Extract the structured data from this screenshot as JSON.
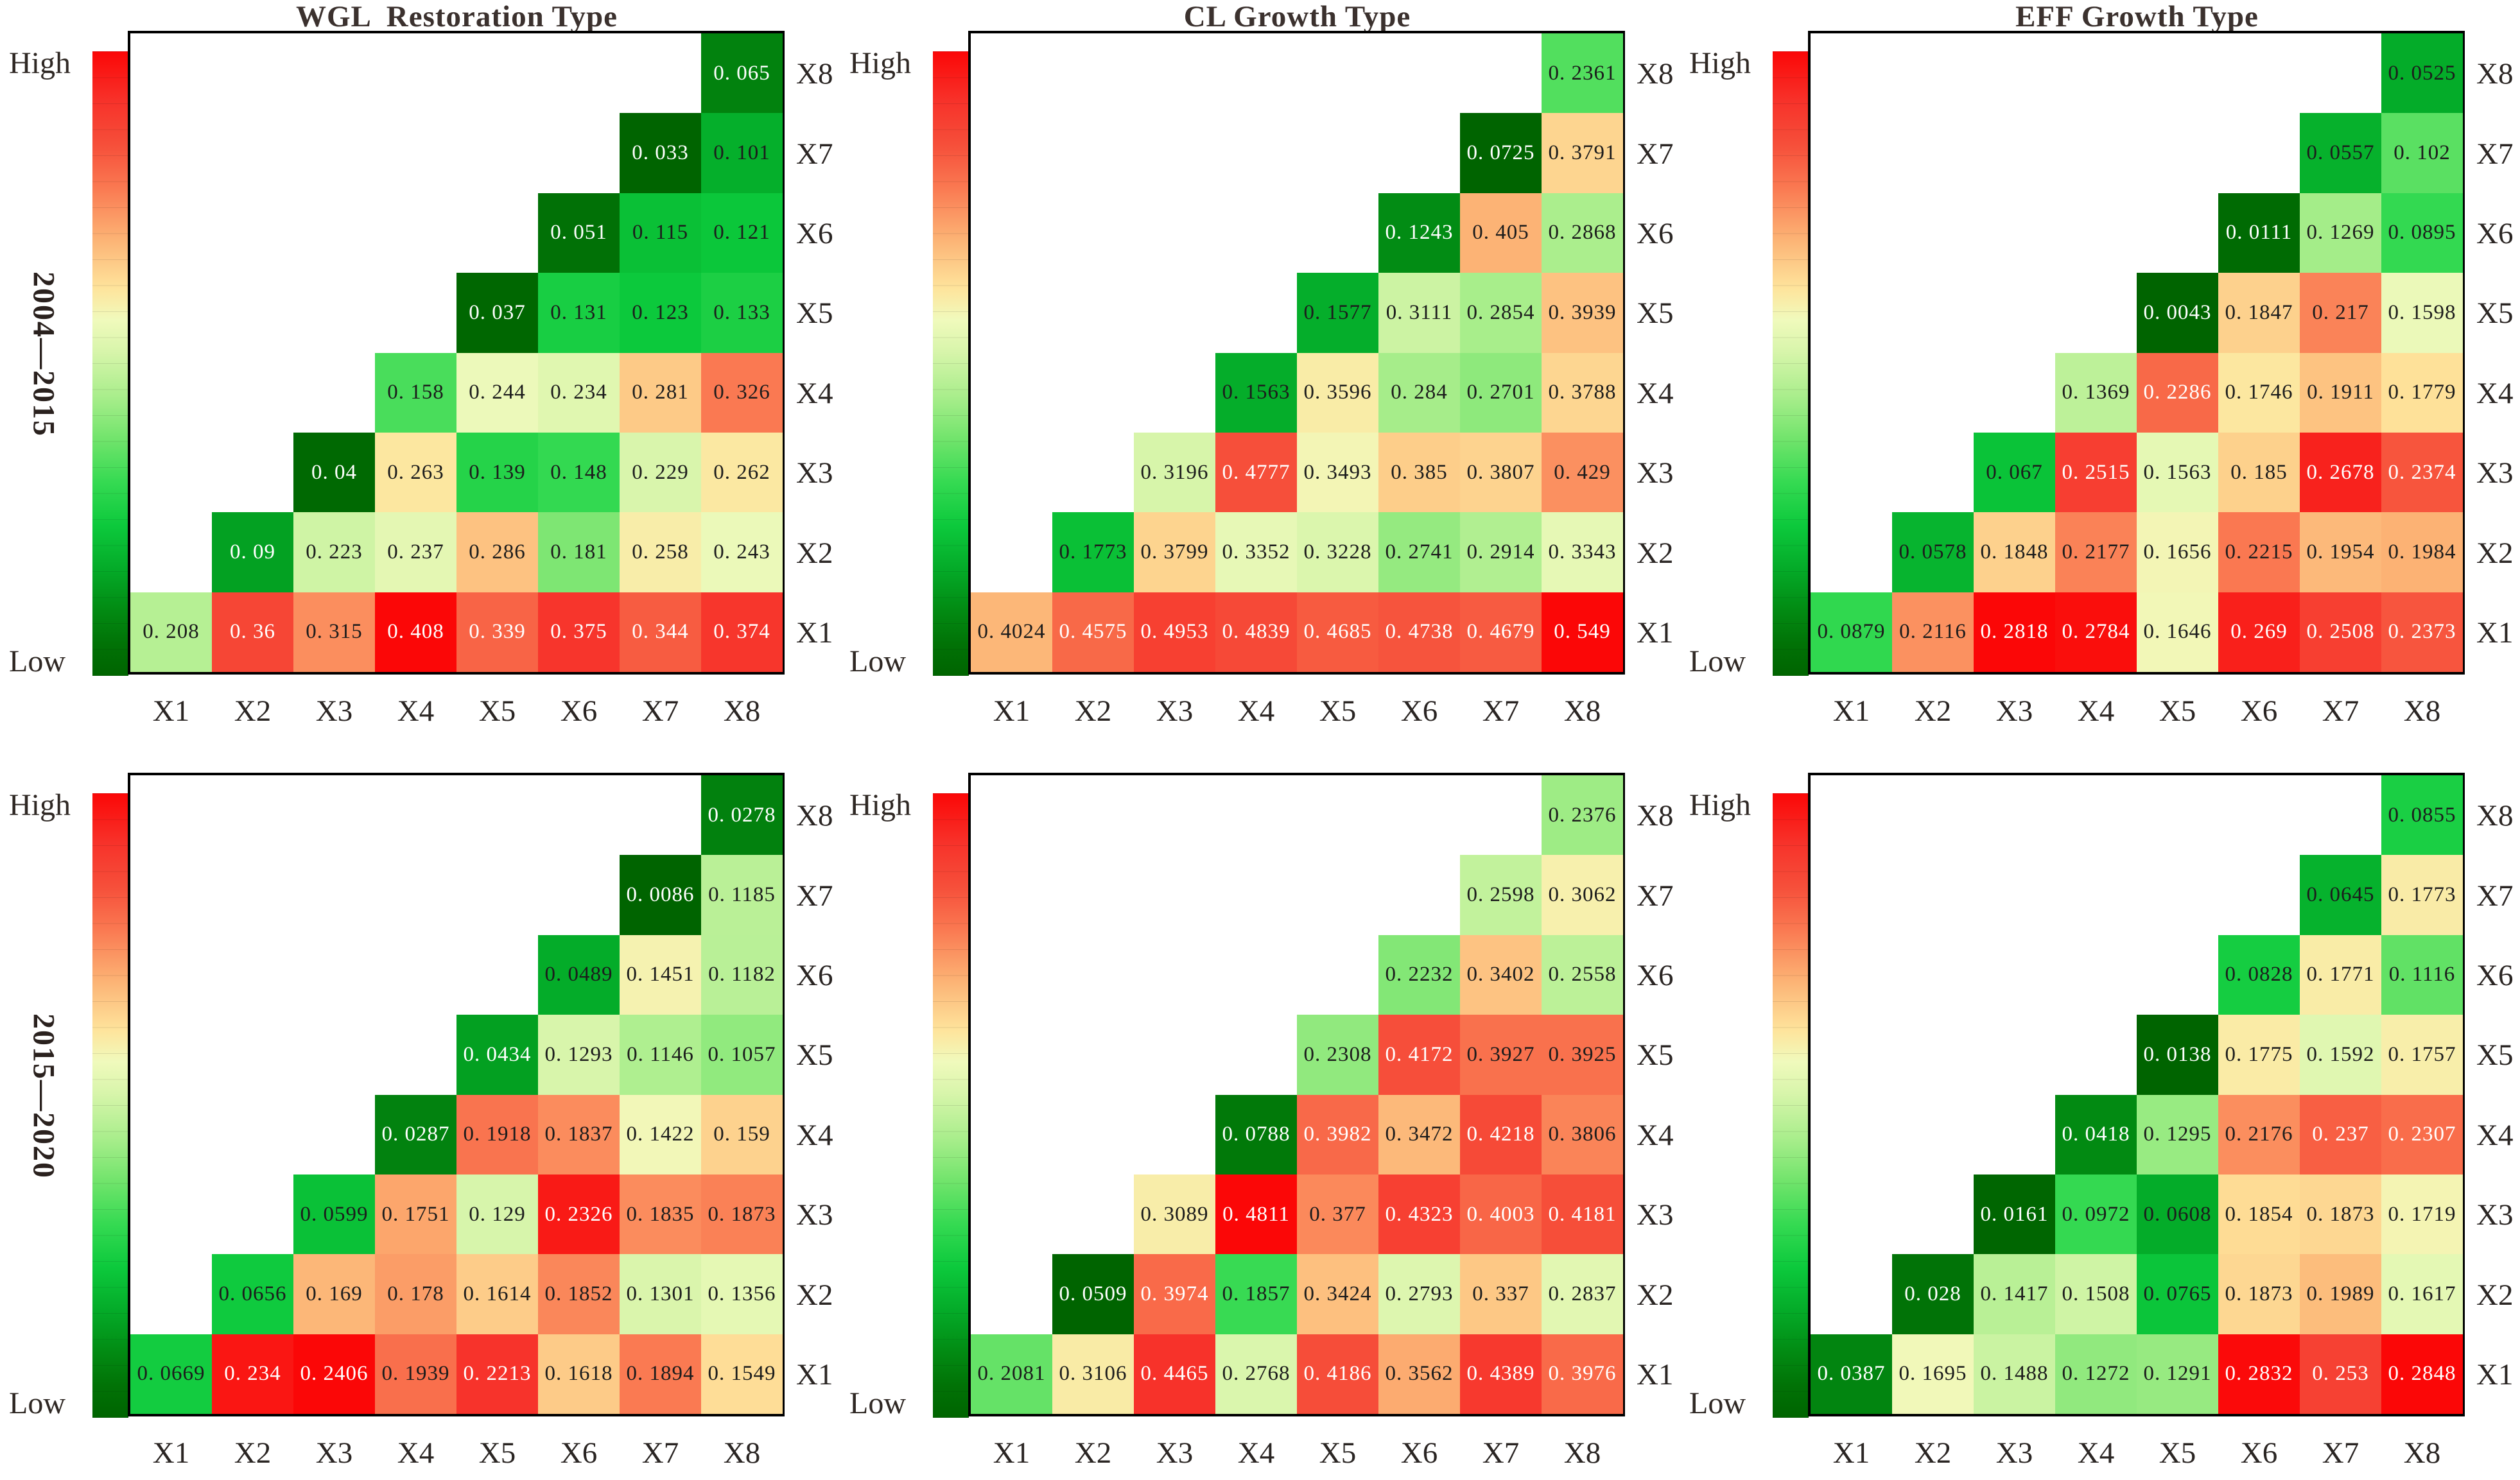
{
  "figure": {
    "background_color": "#ffffff",
    "column_titles": [
      "WGL  Restoration Type",
      "CL Growth Type",
      "EFF Growth Type"
    ],
    "row_period_labels": [
      "2004—2015",
      "2015—2020"
    ],
    "colorbar": {
      "high_label": "High",
      "low_label": "Low",
      "high_color": "#fb0606",
      "mid_color": "#fbfcbf",
      "low_color": "#006400"
    },
    "x_axis_labels": [
      "X1",
      "X2",
      "X3",
      "X4",
      "X5",
      "X6",
      "X7",
      "X8"
    ],
    "y_axis_labels_top_to_bottom": [
      "X8",
      "X7",
      "X6",
      "X5",
      "X4",
      "X3",
      "X2",
      "X1"
    ]
  },
  "palette": {
    "anchors": [
      [
        0.0,
        "#006400"
      ],
      [
        0.05,
        "#017206"
      ],
      [
        0.11,
        "#028d14"
      ],
      [
        0.17,
        "#04aa28"
      ],
      [
        0.24,
        "#0cc93c"
      ],
      [
        0.31,
        "#35da52"
      ],
      [
        0.38,
        "#72e46c"
      ],
      [
        0.45,
        "#abee8d"
      ],
      [
        0.52,
        "#d8f5ab"
      ],
      [
        0.57,
        "#f0fabc"
      ],
      [
        0.62,
        "#fee49c"
      ],
      [
        0.7,
        "#fcb274"
      ],
      [
        0.78,
        "#fa7a52"
      ],
      [
        0.85,
        "#f64f3a"
      ],
      [
        0.92,
        "#f7322a"
      ],
      [
        1.0,
        "#fb0707"
      ]
    ],
    "white_text_low_t": 0.16,
    "white_text_high_t": 0.8
  },
  "chart_data": [
    {
      "type": "heatmap",
      "title": "WGL  Restoration Type",
      "period": "2004—2015",
      "grid_row": 0,
      "grid_col": 0,
      "x_labels": [
        "X1",
        "X2",
        "X3",
        "X4",
        "X5",
        "X6",
        "X7",
        "X8"
      ],
      "rows": [
        {
          "y": "X8",
          "values": [
            0.065
          ]
        },
        {
          "y": "X7",
          "values": [
            0.033,
            0.101
          ]
        },
        {
          "y": "X6",
          "values": [
            0.051,
            0.115,
            0.121
          ]
        },
        {
          "y": "X5",
          "values": [
            0.037,
            0.131,
            0.123,
            0.133
          ]
        },
        {
          "y": "X4",
          "values": [
            0.158,
            0.244,
            0.234,
            0.281,
            0.326
          ]
        },
        {
          "y": "X3",
          "values": [
            0.04,
            0.263,
            0.139,
            0.148,
            0.229,
            0.262
          ]
        },
        {
          "y": "X2",
          "values": [
            0.09,
            0.223,
            0.237,
            0.286,
            0.181,
            0.258,
            0.243
          ]
        },
        {
          "y": "X1",
          "values": [
            0.208,
            0.36,
            0.315,
            0.408,
            0.339,
            0.375,
            0.344,
            0.374
          ]
        }
      ]
    },
    {
      "type": "heatmap",
      "title": "CL Growth Type",
      "period": "2004—2015",
      "grid_row": 0,
      "grid_col": 1,
      "x_labels": [
        "X1",
        "X2",
        "X3",
        "X4",
        "X5",
        "X6",
        "X7",
        "X8"
      ],
      "rows": [
        {
          "y": "X8",
          "values": [
            0.2361
          ]
        },
        {
          "y": "X7",
          "values": [
            0.0725,
            0.3791
          ]
        },
        {
          "y": "X6",
          "values": [
            0.1243,
            0.405,
            0.2868
          ]
        },
        {
          "y": "X5",
          "values": [
            0.1577,
            0.3111,
            0.2854,
            0.3939
          ]
        },
        {
          "y": "X4",
          "values": [
            0.1563,
            0.3596,
            0.284,
            0.2701,
            0.3788
          ]
        },
        {
          "y": "X3",
          "values": [
            0.3196,
            0.4777,
            0.3493,
            0.385,
            0.3807,
            0.429
          ]
        },
        {
          "y": "X2",
          "values": [
            0.1773,
            0.3799,
            0.3352,
            0.3228,
            0.2741,
            0.2914,
            0.3343
          ]
        },
        {
          "y": "X1",
          "values": [
            0.4024,
            0.4575,
            0.4953,
            0.4839,
            0.4685,
            0.4738,
            0.4679,
            0.549
          ]
        }
      ]
    },
    {
      "type": "heatmap",
      "title": "EFF Growth Type",
      "period": "2004—2015",
      "grid_row": 0,
      "grid_col": 2,
      "x_labels": [
        "X1",
        "X2",
        "X3",
        "X4",
        "X5",
        "X6",
        "X7",
        "X8"
      ],
      "rows": [
        {
          "y": "X8",
          "values": [
            0.0525
          ]
        },
        {
          "y": "X7",
          "values": [
            0.0557,
            0.102
          ]
        },
        {
          "y": "X6",
          "values": [
            0.0111,
            0.1269,
            0.0895
          ]
        },
        {
          "y": "X5",
          "values": [
            0.0043,
            0.1847,
            0.217,
            0.1598
          ]
        },
        {
          "y": "X4",
          "values": [
            0.1369,
            0.2286,
            0.1746,
            0.1911,
            0.1779
          ]
        },
        {
          "y": "X3",
          "values": [
            0.067,
            0.2515,
            0.1563,
            0.185,
            0.2678,
            0.2374
          ]
        },
        {
          "y": "X2",
          "values": [
            0.0578,
            0.1848,
            0.2177,
            0.1656,
            0.2215,
            0.1954,
            0.1984
          ]
        },
        {
          "y": "X1",
          "values": [
            0.0879,
            0.2116,
            0.2818,
            0.2784,
            0.1646,
            0.269,
            0.2508,
            0.2373
          ]
        }
      ]
    },
    {
      "type": "heatmap",
      "title": null,
      "period": "2015—2020",
      "grid_row": 1,
      "grid_col": 0,
      "x_labels": [
        "X1",
        "X2",
        "X3",
        "X4",
        "X5",
        "X6",
        "X7",
        "X8"
      ],
      "rows": [
        {
          "y": "X8",
          "values": [
            0.0278
          ]
        },
        {
          "y": "X7",
          "values": [
            0.0086,
            0.1185
          ]
        },
        {
          "y": "X6",
          "values": [
            0.0489,
            0.1451,
            0.1182
          ]
        },
        {
          "y": "X5",
          "values": [
            0.0434,
            0.1293,
            0.1146,
            0.1057
          ]
        },
        {
          "y": "X4",
          "values": [
            0.0287,
            0.1918,
            0.1837,
            0.1422,
            0.159
          ]
        },
        {
          "y": "X3",
          "values": [
            0.0599,
            0.1751,
            0.129,
            0.2326,
            0.1835,
            0.1873
          ]
        },
        {
          "y": "X2",
          "values": [
            0.0656,
            0.169,
            0.178,
            0.1614,
            0.1852,
            0.1301,
            0.1356
          ]
        },
        {
          "y": "X1",
          "values": [
            0.0669,
            0.234,
            0.2406,
            0.1939,
            0.2213,
            0.1618,
            0.1894,
            0.1549
          ]
        }
      ]
    },
    {
      "type": "heatmap",
      "title": null,
      "period": "2015—2020",
      "grid_row": 1,
      "grid_col": 1,
      "x_labels": [
        "X1",
        "X2",
        "X3",
        "X4",
        "X5",
        "X6",
        "X7",
        "X8"
      ],
      "rows": [
        {
          "y": "X8",
          "values": [
            0.2376
          ]
        },
        {
          "y": "X7",
          "values": [
            0.2598,
            0.3062
          ]
        },
        {
          "y": "X6",
          "values": [
            0.2232,
            0.3402,
            0.2558
          ]
        },
        {
          "y": "X5",
          "values": [
            0.2308,
            0.4172,
            0.3927,
            0.3925
          ]
        },
        {
          "y": "X4",
          "values": [
            0.0788,
            0.3982,
            0.3472,
            0.4218,
            0.3806
          ]
        },
        {
          "y": "X3",
          "values": [
            0.3089,
            0.4811,
            0.377,
            0.4323,
            0.4003,
            0.4181
          ]
        },
        {
          "y": "X2",
          "values": [
            0.0509,
            0.3974,
            0.1857,
            0.3424,
            0.2793,
            0.337,
            0.2837
          ]
        },
        {
          "y": "X1",
          "values": [
            0.2081,
            0.3106,
            0.4465,
            0.2768,
            0.4186,
            0.3562,
            0.4389,
            0.3976
          ]
        }
      ]
    },
    {
      "type": "heatmap",
      "title": null,
      "period": "2015—2020",
      "grid_row": 1,
      "grid_col": 2,
      "x_labels": [
        "X1",
        "X2",
        "X3",
        "X4",
        "X5",
        "X6",
        "X7",
        "X8"
      ],
      "rows": [
        {
          "y": "X8",
          "values": [
            0.0855
          ]
        },
        {
          "y": "X7",
          "values": [
            0.0645,
            0.1773
          ]
        },
        {
          "y": "X6",
          "values": [
            0.0828,
            0.1771,
            0.1116
          ]
        },
        {
          "y": "X5",
          "values": [
            0.0138,
            0.1775,
            0.1592,
            0.1757
          ]
        },
        {
          "y": "X4",
          "values": [
            0.0418,
            0.1295,
            0.2176,
            0.237,
            0.2307
          ]
        },
        {
          "y": "X3",
          "values": [
            0.0161,
            0.0972,
            0.0608,
            0.1854,
            0.1873,
            0.1719
          ]
        },
        {
          "y": "X2",
          "values": [
            0.028,
            0.1417,
            0.1508,
            0.0765,
            0.1873,
            0.1989,
            0.1617
          ]
        },
        {
          "y": "X1",
          "values": [
            0.0387,
            0.1695,
            0.1488,
            0.1272,
            0.1291,
            0.2832,
            0.253,
            0.2848
          ]
        }
      ]
    }
  ]
}
